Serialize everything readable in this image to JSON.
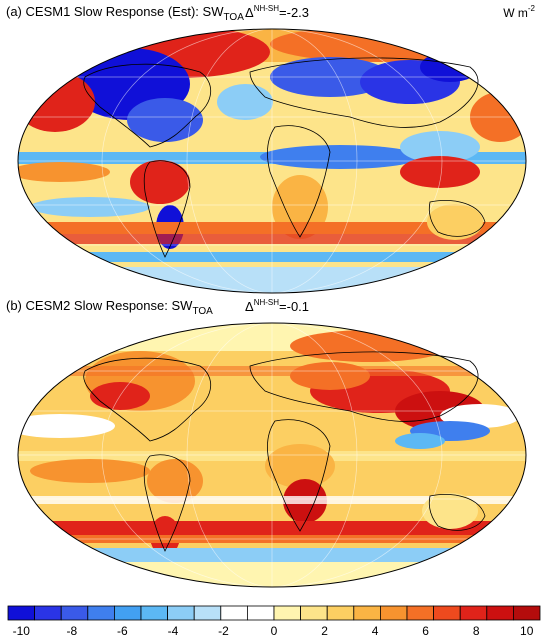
{
  "panels": [
    {
      "label": "(a)",
      "title": "CESM1 Slow Response (Est):",
      "var_base": "SW",
      "var_sub": "TOA",
      "delta_symbol": "Δ",
      "delta_sup": "NH-SH",
      "delta_value": "=-2.3",
      "units_base": "W m",
      "units_sup": "-2"
    },
    {
      "label": "(b)",
      "title": "CESM2 Slow Response:",
      "var_base": "SW",
      "var_sub": "TOA",
      "delta_symbol": "Δ",
      "delta_sup": "NH-SH",
      "delta_value": "=-0.1"
    }
  ],
  "colorbar": {
    "ticks": [
      "-10",
      "-8",
      "-6",
      "-4",
      "-2",
      "0",
      "2",
      "4",
      "6",
      "8",
      "10"
    ],
    "colors": [
      "#1010d8",
      "#2a34e6",
      "#3a5ae8",
      "#3f7fee",
      "#42a0f2",
      "#5cb8f4",
      "#8ccdf6",
      "#b8e0f8",
      "#ffffff",
      "#ffffff",
      "#fff5b0",
      "#fde48a",
      "#fccf62",
      "#fab444",
      "#f7932f",
      "#f47026",
      "#ee4a1e",
      "#e0231a",
      "#cc1010",
      "#b40c0c"
    ]
  }
}
